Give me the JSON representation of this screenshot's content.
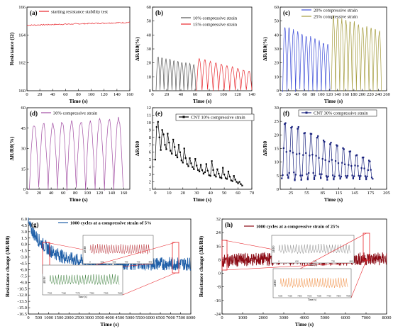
{
  "chart_data": [
    {
      "id": "a",
      "type": "line",
      "panel_label": "(a)",
      "xlabel": "Time (s)",
      "ylabel": "Resistance (Ω)",
      "xlim": [
        0,
        160
      ],
      "ylim": [
        160,
        166
      ],
      "xticks": [
        0,
        20,
        40,
        60,
        80,
        100,
        120,
        140,
        160
      ],
      "yticks": [
        160,
        162,
        164,
        166
      ],
      "series": [
        {
          "name": "starting resistance stability test",
          "color": "#e8262c",
          "kind": "flat",
          "x": [
            0,
            160
          ],
          "y": [
            164.7,
            164.9
          ]
        }
      ]
    },
    {
      "id": "b",
      "type": "line",
      "panel_label": "(b)",
      "xlabel": "Time (s)",
      "ylabel": "ΔR/R0(%)",
      "xlim": [
        0,
        140
      ],
      "ylim": [
        0,
        60
      ],
      "xticks": [
        0,
        20,
        40,
        60,
        80,
        100,
        120,
        140
      ],
      "yticks": [
        0,
        10,
        20,
        30,
        40,
        50,
        60
      ],
      "series": [
        {
          "name": "10% compressive strain",
          "color": "#555555",
          "kind": "cyclic",
          "x_start": 5,
          "period": 5.6,
          "cycles": 10,
          "peak_start": 24,
          "peak_end": 19
        },
        {
          "name": "15% compressive strain",
          "color": "#e8262c",
          "kind": "cyclic",
          "x_start": 62,
          "period": 7.8,
          "cycles": 10,
          "peak_start": 23,
          "peak_end": 14
        }
      ]
    },
    {
      "id": "c",
      "type": "line",
      "panel_label": "(c)",
      "xlabel": "Time (s)",
      "ylabel": "ΔR/R0(%)",
      "xlim": [
        0,
        260
      ],
      "ylim": [
        0,
        60
      ],
      "xticks": [
        0,
        20,
        40,
        60,
        80,
        100,
        120,
        140,
        160,
        180,
        200,
        220,
        240,
        260
      ],
      "yticks": [
        0,
        10,
        20,
        30,
        40,
        50,
        60
      ],
      "series": [
        {
          "name": "20% compressive strain",
          "color": "#3f4fd8",
          "kind": "cyclic",
          "x_start": 6,
          "period": 10.5,
          "cycles": 11,
          "peak_start": 46,
          "peak_end": 33
        },
        {
          "name": "25% compressive strain",
          "color": "#a59c3e",
          "kind": "cyclic",
          "x_start": 125,
          "period": 10.2,
          "cycles": 12,
          "peak_start": 53,
          "peak_end": 43
        }
      ]
    },
    {
      "id": "d",
      "type": "line",
      "panel_label": "(d)",
      "xlabel": "Time (s)",
      "ylabel": "ΔR/R0(%)",
      "xlim": [
        0,
        170
      ],
      "ylim": [
        0,
        60
      ],
      "xticks": [
        0,
        20,
        40,
        60,
        80,
        100,
        120,
        140,
        160
      ],
      "yticks": [
        0,
        15,
        30,
        45,
        60
      ],
      "series": [
        {
          "name": "30% compressive strain",
          "color": "#a24ea3",
          "kind": "cyclic",
          "x_start": 4,
          "period": 15.5,
          "cycles": 10,
          "peak_start": 48,
          "peak_end": 52
        }
      ]
    },
    {
      "id": "e",
      "type": "line",
      "panel_label": "(e)",
      "xlabel": "Time (s)",
      "ylabel": "ΔR/R0",
      "xlim": [
        -2,
        70
      ],
      "ylim": [
        1,
        12
      ],
      "xticks": [
        0,
        10,
        20,
        30,
        40,
        50,
        60,
        70
      ],
      "yticks": [
        1,
        2,
        3,
        4,
        5,
        6,
        7,
        8,
        9,
        10,
        11,
        12
      ],
      "series": [
        {
          "name": "CNT 10% compressive strain",
          "color": "#000000",
          "kind": "points",
          "x": [
            0,
            1,
            2,
            3,
            4,
            5,
            6,
            7,
            8,
            9,
            10,
            11,
            12,
            13,
            14,
            15,
            16,
            17,
            18,
            19,
            20,
            21,
            22,
            23,
            24,
            25,
            26,
            27,
            28,
            29,
            30,
            31,
            32,
            33,
            34,
            35,
            36,
            37,
            38,
            39,
            40,
            41,
            42,
            43,
            44,
            45,
            46,
            47,
            48,
            49,
            50,
            51,
            52,
            53,
            54,
            55,
            56,
            57,
            58,
            59,
            60,
            61,
            62,
            63
          ],
          "y": [
            5.0,
            9.4,
            10.1,
            8.0,
            6.3,
            9.0,
            8.4,
            7.0,
            6.4,
            8.5,
            7.3,
            6.2,
            5.8,
            7.7,
            6.7,
            5.6,
            5.3,
            7.0,
            6.0,
            4.9,
            4.6,
            6.5,
            5.2,
            4.4,
            4.1,
            5.2,
            4.5,
            4.0,
            3.7,
            5.1,
            4.2,
            3.6,
            3.4,
            4.3,
            3.6,
            3.1,
            3.3,
            4.4,
            3.5,
            2.9,
            2.8,
            4.8,
            3.6,
            2.9,
            2.7,
            3.7,
            3.1,
            2.6,
            2.5,
            3.9,
            3.0,
            2.5,
            2.4,
            3.4,
            2.7,
            2.2,
            2.1,
            2.8,
            2.3,
            2.0,
            1.8,
            2.0,
            1.7,
            1.5
          ]
        }
      ]
    },
    {
      "id": "f",
      "type": "line",
      "panel_label": "(f)",
      "xlabel": "Time (s)",
      "ylabel": "ΔR/R0",
      "xlim": [
        5,
        205
      ],
      "ylim": [
        0,
        30
      ],
      "xticks": [
        25,
        55,
        85,
        115,
        145,
        175,
        205
      ],
      "yticks": [
        0,
        5,
        10,
        15,
        20,
        25,
        30
      ],
      "series": [
        {
          "name": "CNT 30% compressive strain",
          "color": "#1a237e",
          "kind": "cyclic_points",
          "x_start": 8,
          "period": 12.2,
          "cycles": 14,
          "peak_start": 26,
          "peak_end": 11,
          "base": 4
        }
      ]
    },
    {
      "id": "g",
      "type": "line",
      "panel_label": "(g)",
      "xlabel": "Time (s)",
      "ylabel": "Resistance change (ΔR/R0)",
      "xlim": [
        0,
        8000
      ],
      "ylim": [
        -16.5,
        6
      ],
      "xticks": [
        0,
        500,
        1000,
        1500,
        2000,
        2500,
        3000,
        3500,
        4000,
        4500,
        5000,
        5500,
        6000,
        6500,
        7000,
        7500,
        8000
      ],
      "yticks": [
        -16.5,
        -15.0,
        -13.5,
        -12.0,
        -10.5,
        -9.0,
        -7.5,
        -6.0,
        -4.5,
        -3.0,
        -1.5,
        0.0,
        1.5,
        3.0,
        4.5,
        6.0
      ],
      "series": [
        {
          "name": "1000 cycles at a compressive strain of 5%",
          "color": "#1f5fa8",
          "kind": "noise_band",
          "start_value": 4.8,
          "end_value": -4.6,
          "band": 1.6
        }
      ],
      "insets": [
        {
          "color": "#b8333a",
          "xticks": [
            "0",
            "600",
            "650",
            "700",
            "750",
            "800"
          ],
          "y_label": "ΔR/R0"
        },
        {
          "color": "#3a7d3a",
          "xticks": [
            "7550",
            "7560",
            "7570",
            "7580",
            "7590",
            "7600"
          ],
          "y_label": "ΔR/R0",
          "x_label": "Time (s)"
        }
      ]
    },
    {
      "id": "h",
      "type": "line",
      "panel_label": "(h)",
      "xlabel": "Time (s)",
      "ylabel": "Resistance change (ΔR/R0)",
      "xlim": [
        0,
        8000
      ],
      "ylim": [
        -24,
        32
      ],
      "xticks": [
        0,
        1000,
        2000,
        3000,
        4000,
        5000,
        6000,
        7000,
        8000
      ],
      "yticks": [
        -24,
        -16,
        -8,
        0,
        8,
        16,
        24,
        32
      ],
      "series": [
        {
          "name": "1000 cycles at a compressive strain of 25%",
          "color": "#8b0a14",
          "kind": "noise_band",
          "start_value": 7,
          "end_value": 8.5,
          "band": 4
        }
      ],
      "insets": [
        {
          "color": "#8a8a8a",
          "xticks": [
            "0",
            "650",
            "700",
            "750",
            "800"
          ],
          "y_label": "ΔR/R0",
          "x_label": "Time (s)"
        },
        {
          "color": "#f08a3c",
          "xticks": [
            "7200",
            "7300",
            "7400",
            "7500",
            "7600",
            "7700",
            "7800",
            "7900"
          ],
          "y_label": "ΔR/R0",
          "x_label": "Time (s)"
        }
      ]
    }
  ]
}
